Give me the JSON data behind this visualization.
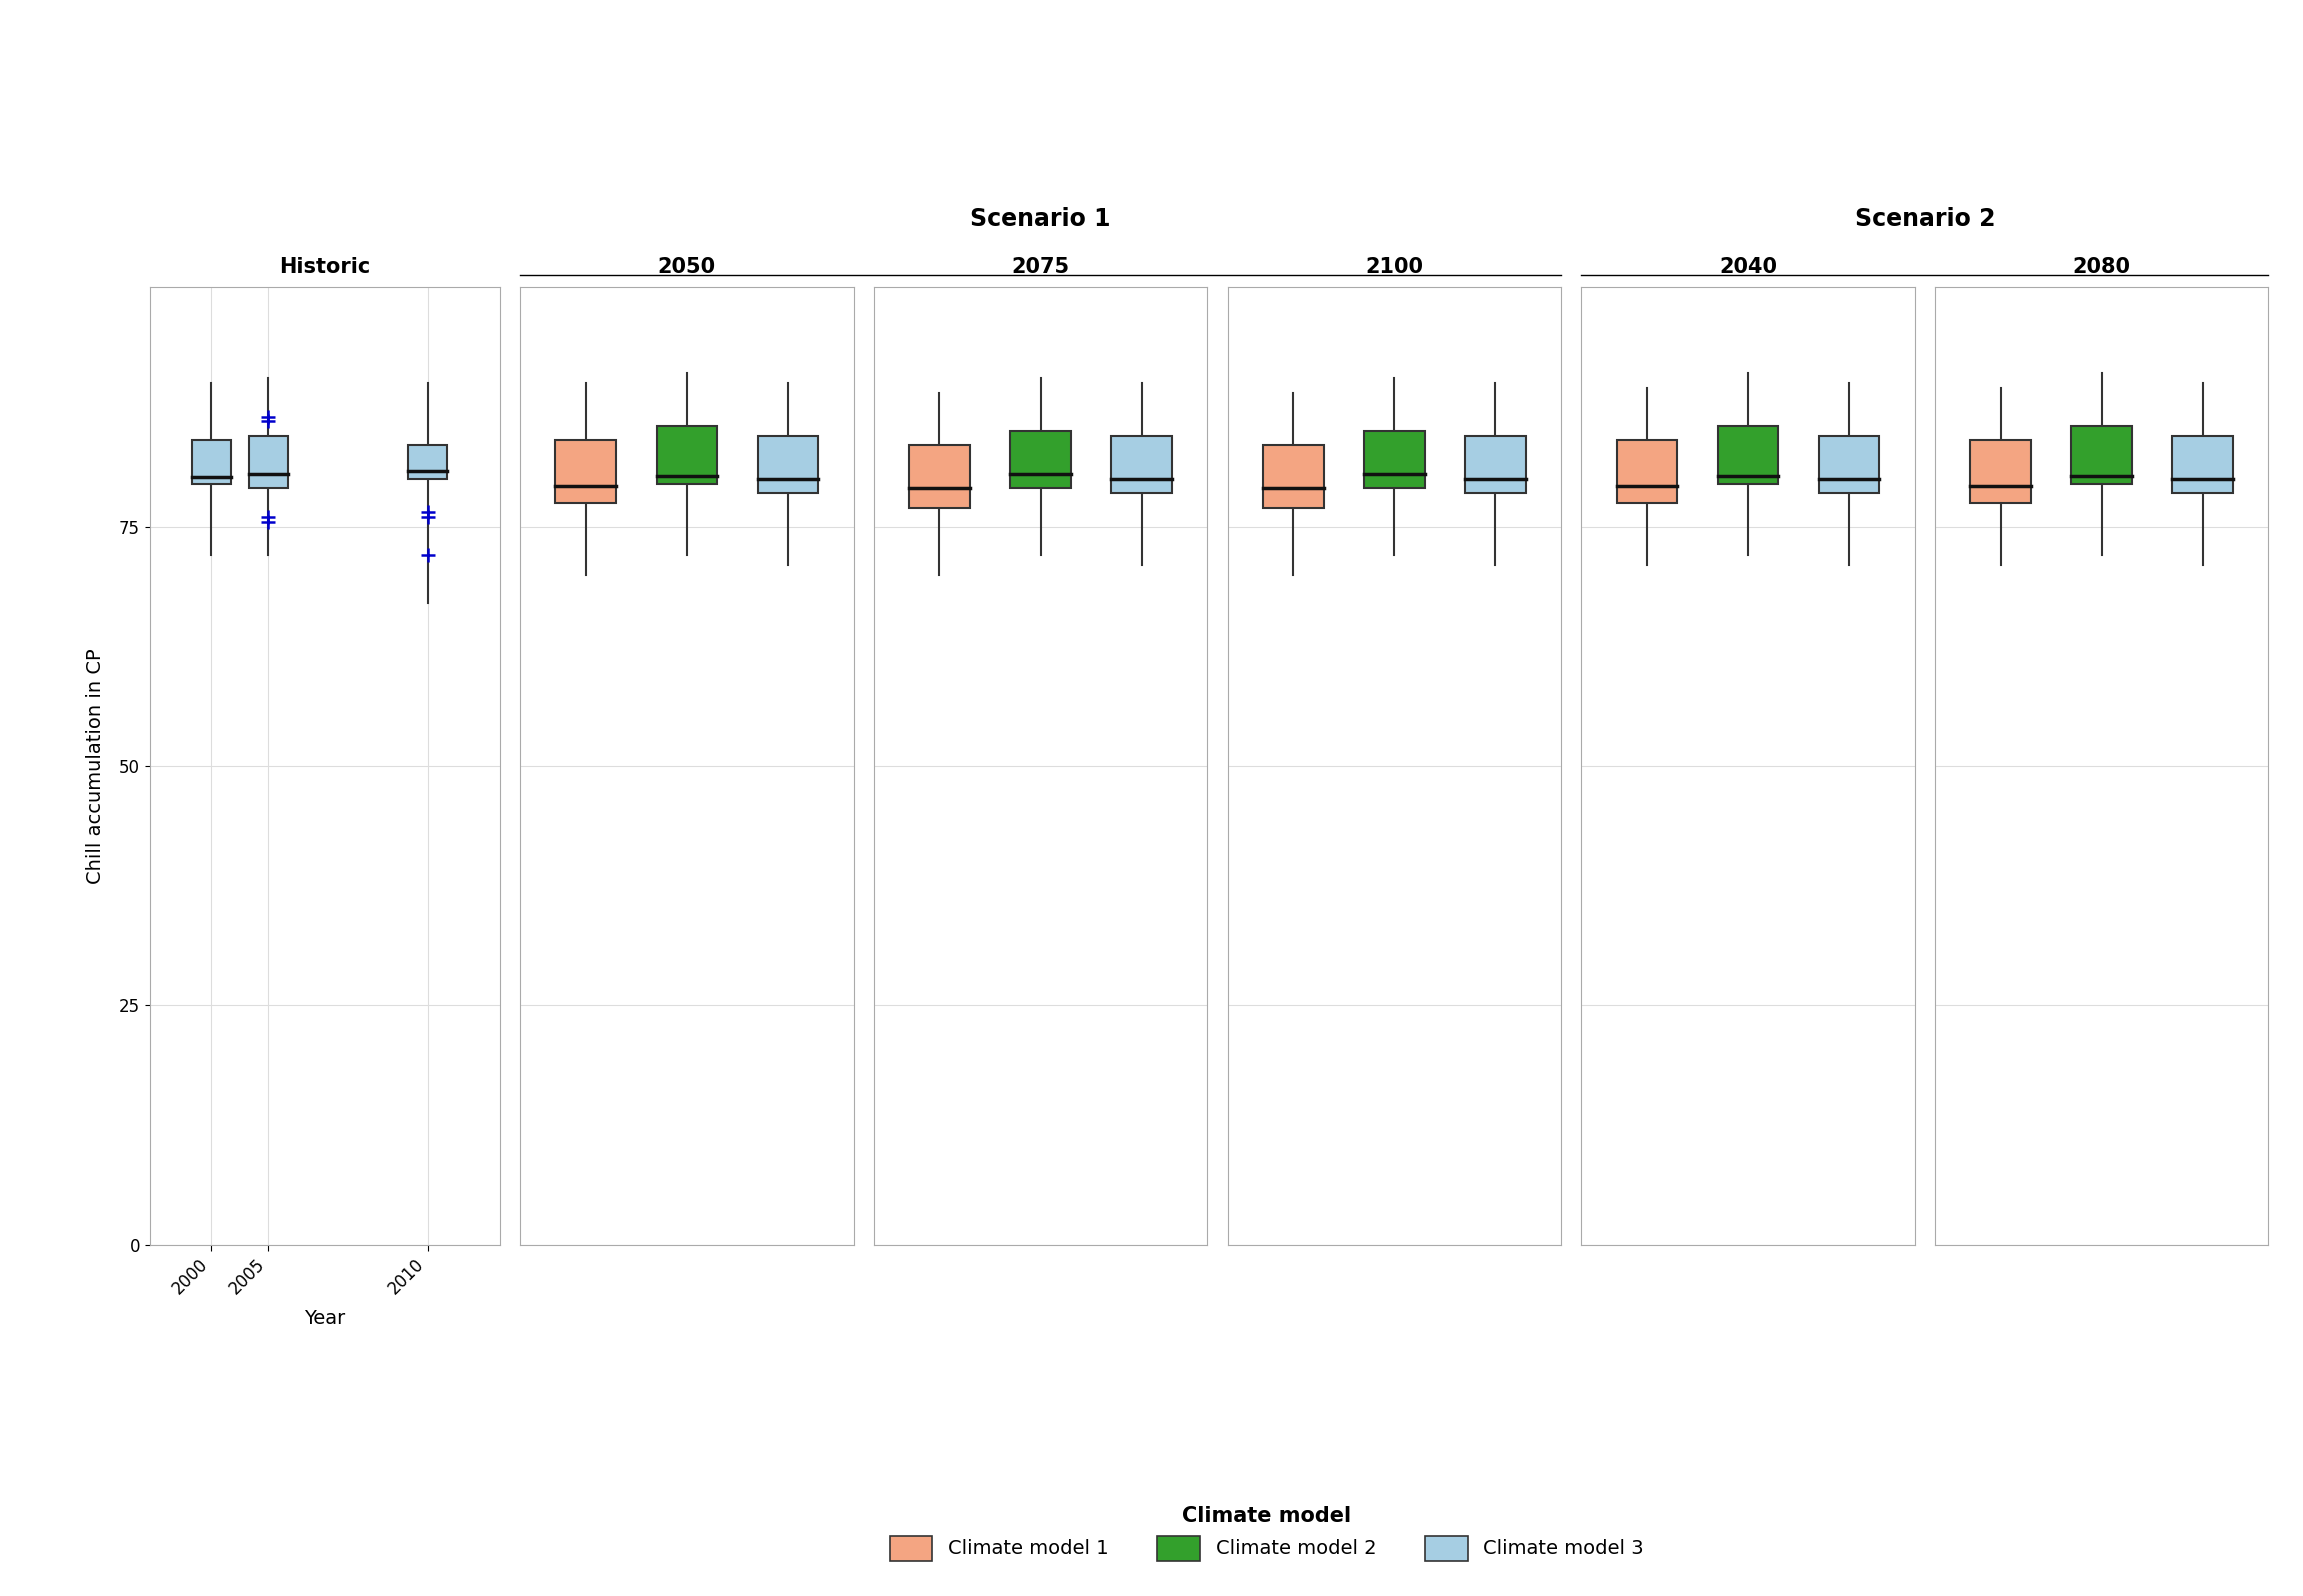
{
  "title_historic": "Historic",
  "title_scenario1": "Scenario 1",
  "title_scenario2": "Scenario 2",
  "panel_years": [
    "2050",
    "2075",
    "2100",
    "2040",
    "2080"
  ],
  "ylabel": "Chill accumulation in CP",
  "xlabel": "Year",
  "legend_title": "Climate model",
  "legend_labels": [
    "Climate model 1",
    "Climate model 2",
    "Climate model 3"
  ],
  "colors": {
    "model1": "#F4A582",
    "model2": "#33A02C",
    "model3": "#A6CEE3",
    "historic": "#A6CEE3",
    "outlier": "#0000CC",
    "median_line": "#111111",
    "box_edge": "#333333"
  },
  "ylim": [
    0,
    100
  ],
  "yticks": [
    0,
    25,
    50,
    75
  ],
  "historic_data": {
    "2000": {
      "q1": 79.5,
      "median": 80.2,
      "q3": 84.0,
      "wlo": 72.0,
      "whi": 90.0,
      "outliers": []
    },
    "2005": {
      "q1": 79.0,
      "median": 80.5,
      "q3": 84.5,
      "wlo": 72.0,
      "whi": 90.5,
      "outliers": [
        86.0,
        86.5,
        76.0,
        75.5
      ]
    },
    "2010": {
      "q1": 80.0,
      "median": 80.8,
      "q3": 83.5,
      "wlo": 67.0,
      "whi": 90.0,
      "outliers": [
        76.5,
        76.0,
        72.0
      ]
    }
  },
  "scenario_data": {
    "2050": {
      "model1": {
        "q1": 77.5,
        "median": 79.3,
        "q3": 84.0,
        "wlo": 70.0,
        "whi": 90.0
      },
      "model2": {
        "q1": 79.5,
        "median": 80.3,
        "q3": 85.5,
        "wlo": 72.0,
        "whi": 91.0
      },
      "model3": {
        "q1": 78.5,
        "median": 80.0,
        "q3": 84.5,
        "wlo": 71.0,
        "whi": 90.0
      }
    },
    "2075": {
      "model1": {
        "q1": 77.0,
        "median": 79.0,
        "q3": 83.5,
        "wlo": 70.0,
        "whi": 89.0
      },
      "model2": {
        "q1": 79.0,
        "median": 80.5,
        "q3": 85.0,
        "wlo": 72.0,
        "whi": 90.5
      },
      "model3": {
        "q1": 78.5,
        "median": 80.0,
        "q3": 84.5,
        "wlo": 71.0,
        "whi": 90.0
      }
    },
    "2100": {
      "model1": {
        "q1": 77.0,
        "median": 79.0,
        "q3": 83.5,
        "wlo": 70.0,
        "whi": 89.0
      },
      "model2": {
        "q1": 79.0,
        "median": 80.5,
        "q3": 85.0,
        "wlo": 72.0,
        "whi": 90.5
      },
      "model3": {
        "q1": 78.5,
        "median": 80.0,
        "q3": 84.5,
        "wlo": 71.0,
        "whi": 90.0
      }
    },
    "2040": {
      "model1": {
        "q1": 77.5,
        "median": 79.3,
        "q3": 84.0,
        "wlo": 71.0,
        "whi": 89.5
      },
      "model2": {
        "q1": 79.5,
        "median": 80.3,
        "q3": 85.5,
        "wlo": 72.0,
        "whi": 91.0
      },
      "model3": {
        "q1": 78.5,
        "median": 80.0,
        "q3": 84.5,
        "wlo": 71.0,
        "whi": 90.0
      }
    },
    "2080": {
      "model1": {
        "q1": 77.5,
        "median": 79.3,
        "q3": 84.0,
        "wlo": 71.0,
        "whi": 89.5
      },
      "model2": {
        "q1": 79.5,
        "median": 80.3,
        "q3": 85.5,
        "wlo": 72.0,
        "whi": 91.0
      },
      "model3": {
        "q1": 78.5,
        "median": 80.0,
        "q3": 84.5,
        "wlo": 71.0,
        "whi": 90.0
      }
    }
  },
  "bg_color": "#FFFFFF",
  "grid_color": "#DDDDDD",
  "spine_color": "#AAAAAA"
}
